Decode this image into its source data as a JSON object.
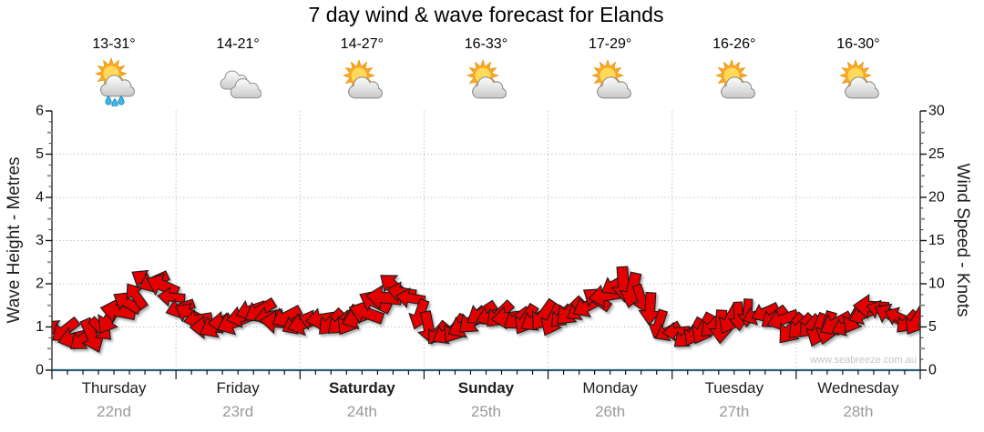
{
  "title": "7 day wind & wave forecast for Elands",
  "watermark": "www.seabreeze.com.au",
  "days": [
    {
      "name": "Thursday",
      "date": "22nd",
      "temp": "13-31°",
      "icon": "partly-cloudy-showers",
      "bold": false
    },
    {
      "name": "Friday",
      "date": "23rd",
      "temp": "14-21°",
      "icon": "cloudy",
      "bold": false
    },
    {
      "name": "Saturday",
      "date": "24th",
      "temp": "14-27°",
      "icon": "partly-cloudy",
      "bold": true
    },
    {
      "name": "Sunday",
      "date": "25th",
      "temp": "16-33°",
      "icon": "partly-cloudy",
      "bold": true
    },
    {
      "name": "Monday",
      "date": "26th",
      "temp": "17-29°",
      "icon": "partly-cloudy",
      "bold": false
    },
    {
      "name": "Tuesday",
      "date": "27th",
      "temp": "16-26°",
      "icon": "partly-cloudy",
      "bold": false
    },
    {
      "name": "Wednesday",
      "date": "28th",
      "temp": "16-30°",
      "icon": "partly-cloudy",
      "bold": false
    }
  ],
  "axes": {
    "left": {
      "label": "Wave Height - Metres",
      "ticks": [
        0,
        1,
        2,
        3,
        4,
        5,
        6
      ],
      "range": [
        0,
        6
      ]
    },
    "right": {
      "label": "Wind Speed - Knots",
      "ticks": [
        0,
        5,
        10,
        15,
        20,
        25,
        30
      ],
      "range": [
        0,
        30
      ]
    }
  },
  "chart_data": {
    "type": "wind-arrows",
    "description": "Dense band of red wind arrows: arrow height = wind speed in knots (right axis), arrow rotation = wind direction. Wind stays light, ~4-10 knots all week. No visible wave-height trace.",
    "x_categories": [
      "Thursday 22nd",
      "Friday 23rd",
      "Saturday 24th",
      "Sunday 25th",
      "Monday 26th",
      "Tuesday 27th",
      "Wednesday 28th"
    ],
    "samples_per_day": 8,
    "sample_interval": "3 hours",
    "wind_speed_knots": [
      4.6,
      4.2,
      3.8,
      4.6,
      6.0,
      8.0,
      10.0,
      9.8,
      8.0,
      6.2,
      5.2,
      5.4,
      6.0,
      6.6,
      6.2,
      5.8,
      5.6,
      5.4,
      5.6,
      6.0,
      6.4,
      7.6,
      9.4,
      8.6,
      5.4,
      4.2,
      4.6,
      5.6,
      6.4,
      6.2,
      6.0,
      6.2,
      6.0,
      6.2,
      6.6,
      7.6,
      9.4,
      10.0,
      8.6,
      6.0,
      4.4,
      3.8,
      4.4,
      5.4,
      6.2,
      6.8,
      6.4,
      5.8,
      5.0,
      4.6,
      4.8,
      5.4,
      6.4,
      7.4,
      6.8,
      6.0,
      6.2
    ],
    "wind_direction_deg_screen": [
      190,
      170,
      150,
      10,
      200,
      210,
      190,
      170,
      160,
      180,
      170,
      160,
      150,
      170,
      180,
      190,
      170,
      160,
      150,
      140,
      160,
      180,
      200,
      170,
      90,
      120,
      140,
      160,
      180,
      160,
      140,
      120,
      130,
      150,
      170,
      190,
      210,
      100,
      90,
      110,
      180,
      160,
      140,
      120,
      100,
      130,
      160,
      180,
      150,
      130,
      110,
      130,
      150,
      170,
      190,
      160,
      150
    ],
    "ylim_left_metres": [
      0,
      6
    ],
    "ylim_right_knots": [
      0,
      30
    ],
    "grid": "dotted gray horizontal lines at 1-5 m (5-25 kn) and vertical at day boundaries",
    "legend": "none"
  },
  "colors": {
    "arrow": "#E30505",
    "arrow_outline": "#1C1C1C",
    "x_axis_line": "#2B607A",
    "y_axis_line": "#2F2F2F",
    "grid": "#C3C3C3",
    "tick_label": "#111111",
    "date_text": "#999999",
    "watermark_text": "#C6C6C6"
  }
}
